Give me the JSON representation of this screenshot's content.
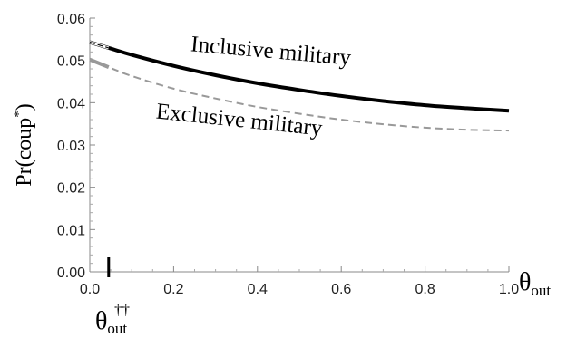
{
  "chart_data": {
    "type": "line",
    "title": "",
    "ylabel_base": "Pr(coup",
    "ylabel_sup": "*",
    "ylabel_close": ")",
    "xlabel_base": "θ",
    "xlabel_sub": "out",
    "xlim": [
      0.0,
      1.0
    ],
    "ylim": [
      0.0,
      0.06
    ],
    "x_ticks": [
      "0.0",
      "0.2",
      "0.4",
      "0.6",
      "0.8",
      "1.0"
    ],
    "y_ticks": [
      "0.00",
      "0.01",
      "0.02",
      "0.03",
      "0.04",
      "0.05",
      "0.06"
    ],
    "threshold": {
      "x": 0.045,
      "label_base": "θ",
      "label_sub": "out",
      "label_sup": "††"
    },
    "series": [
      {
        "name": "Inclusive military",
        "style": "solid",
        "color": "#000000",
        "x": [
          0.0,
          0.05,
          0.1,
          0.2,
          0.3,
          0.4,
          0.5,
          0.6,
          0.7,
          0.8,
          0.9,
          1.0
        ],
        "y": [
          0.0543,
          0.0528,
          0.0513,
          0.0487,
          0.0465,
          0.0446,
          0.043,
          0.0416,
          0.0404,
          0.0394,
          0.0387,
          0.0381
        ]
      },
      {
        "name": "Exclusive military",
        "style": "dashed",
        "color": "#999999",
        "x": [
          0.0,
          0.05,
          0.1,
          0.2,
          0.3,
          0.4,
          0.5,
          0.6,
          0.7,
          0.8,
          0.9,
          1.0
        ],
        "y": [
          0.0502,
          0.0482,
          0.0463,
          0.0433,
          0.041,
          0.039,
          0.0374,
          0.036,
          0.0349,
          0.0341,
          0.0336,
          0.0334
        ]
      }
    ]
  }
}
